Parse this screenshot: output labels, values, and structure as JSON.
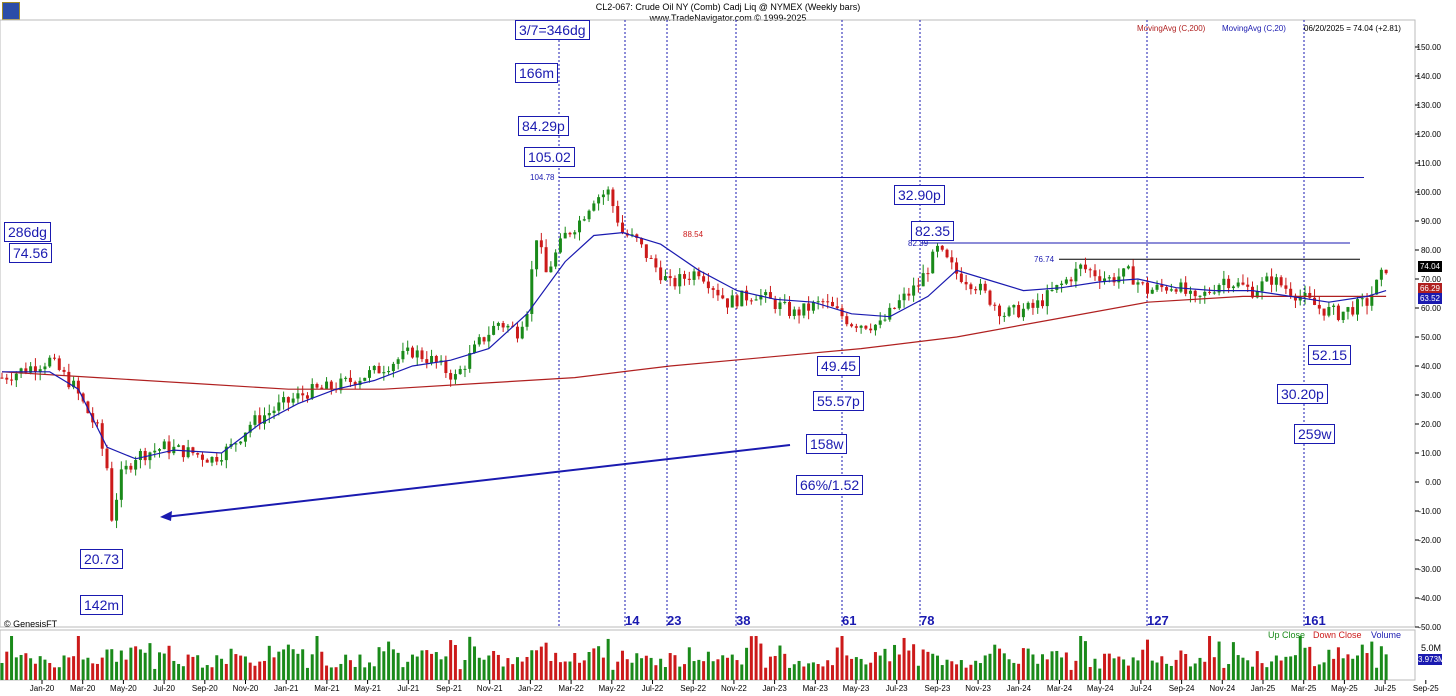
{
  "header": {
    "title": "CL2-067:  Crude Oil NY (Comb) Cadj Liq @ NYMEX  (Weekly bars)",
    "source": "www.TradeNavigator.com © 1999-2025",
    "ma200_label": "MovingAvg (C,200)",
    "ma20_label": "MovingAvg (C,20)",
    "last_bar": "06/20/2025 = 74.04 (+2.81)",
    "copyright": "© GenesisFT"
  },
  "colors": {
    "ma200": "#b02020",
    "ma20": "#1a1ab0",
    "up": "#1a8a1a",
    "down": "#cc1a1a",
    "annot": "#1a1ab0"
  },
  "price_tags": {
    "last": "74.04",
    "ma20": "66.29",
    "ma200": "63.52"
  },
  "volume": {
    "up_label": "Up Close",
    "down_label": "Down Close",
    "vol_label": "Volume",
    "top_tick": "5.0M",
    "last": "3.973M"
  },
  "annotations": {
    "angle_top": "3/7=346dg",
    "m166": "166m",
    "p8429": "84.29p",
    "v10502": "105.02",
    "dg286": "286dg",
    "v7456": "74.56",
    "p3290": "32.90p",
    "v8235": "82.35",
    "v4945": "49.45",
    "p5557": "55.57p",
    "w158": "158w",
    "pct": "66%/1.52",
    "v2073": "20.73",
    "m142": "142m",
    "v5215": "52.15",
    "p3020": "30.20p",
    "w259": "259w",
    "small_10478": "104.78",
    "small_8254": "88.54",
    "small_8239": "82.39",
    "small_7674": "76.74"
  },
  "bar_counts": [
    "14",
    "23",
    "38",
    "61",
    "78",
    "127",
    "161"
  ],
  "chart_data": {
    "type": "candlestick",
    "title": "CL2-067: Crude Oil NY (Comb) Cadj Liq @ NYMEX (Weekly bars)",
    "yticks": [
      150,
      140,
      130,
      120,
      110,
      100,
      90,
      80,
      70,
      60,
      50,
      40,
      30,
      20,
      10,
      0,
      -10,
      -20,
      -30,
      -40,
      -50
    ],
    "ylim": [
      -50,
      155
    ],
    "xlabels": [
      "Jan-20",
      "Mar-20",
      "May-20",
      "Jul-20",
      "Sep-20",
      "Nov-20",
      "Jan-21",
      "Mar-21",
      "May-21",
      "Jul-21",
      "Sep-21",
      "Nov-21",
      "Jan-22",
      "Mar-22",
      "May-22",
      "Jul-22",
      "Sep-22",
      "Nov-22",
      "Jan-23",
      "Mar-23",
      "May-23",
      "Jul-23",
      "Sep-23",
      "Nov-23",
      "Jan-24",
      "Mar-24",
      "May-24",
      "Jul-24",
      "Sep-24",
      "Nov-24",
      "Jan-25",
      "Mar-25",
      "May-25",
      "Jul-25",
      "Sep-25"
    ],
    "price_path": [
      [
        0,
        36
      ],
      [
        10,
        42
      ],
      [
        15,
        33
      ],
      [
        20,
        18
      ],
      [
        22,
        5
      ],
      [
        23,
        -12
      ],
      [
        25,
        2
      ],
      [
        28,
        9
      ],
      [
        34,
        12
      ],
      [
        40,
        10
      ],
      [
        44,
        8
      ],
      [
        48,
        12
      ],
      [
        52,
        20
      ],
      [
        58,
        26
      ],
      [
        64,
        31
      ],
      [
        70,
        33
      ],
      [
        78,
        38
      ],
      [
        86,
        45
      ],
      [
        90,
        42
      ],
      [
        95,
        36
      ],
      [
        100,
        48
      ],
      [
        104,
        55
      ],
      [
        108,
        52
      ],
      [
        110,
        60
      ],
      [
        112,
        85
      ],
      [
        114,
        72
      ],
      [
        118,
        85
      ],
      [
        121,
        90
      ],
      [
        124,
        98
      ],
      [
        127,
        100
      ],
      [
        130,
        86
      ],
      [
        133,
        83
      ],
      [
        136,
        76
      ],
      [
        140,
        68
      ],
      [
        146,
        73
      ],
      [
        152,
        62
      ],
      [
        158,
        65
      ],
      [
        166,
        58
      ],
      [
        172,
        62
      ],
      [
        178,
        55
      ],
      [
        184,
        54
      ],
      [
        188,
        62
      ],
      [
        192,
        68
      ],
      [
        196,
        80
      ],
      [
        200,
        72
      ],
      [
        204,
        68
      ],
      [
        210,
        58
      ],
      [
        216,
        60
      ],
      [
        222,
        68
      ],
      [
        226,
        74
      ],
      [
        232,
        70
      ],
      [
        236,
        72
      ],
      [
        240,
        66
      ],
      [
        246,
        68
      ],
      [
        250,
        62
      ],
      [
        256,
        70
      ],
      [
        262,
        66
      ],
      [
        266,
        70
      ],
      [
        270,
        66
      ],
      [
        276,
        60
      ],
      [
        280,
        58
      ],
      [
        286,
        62
      ],
      [
        290,
        74
      ]
    ],
    "ma20_path": [
      [
        0,
        38
      ],
      [
        10,
        38
      ],
      [
        16,
        32
      ],
      [
        22,
        12
      ],
      [
        28,
        8
      ],
      [
        36,
        11
      ],
      [
        46,
        10
      ],
      [
        54,
        20
      ],
      [
        62,
        27
      ],
      [
        70,
        32
      ],
      [
        78,
        35
      ],
      [
        86,
        40
      ],
      [
        94,
        42
      ],
      [
        102,
        46
      ],
      [
        110,
        58
      ],
      [
        118,
        76
      ],
      [
        124,
        85
      ],
      [
        130,
        86
      ],
      [
        138,
        82
      ],
      [
        146,
        73
      ],
      [
        154,
        66
      ],
      [
        162,
        63
      ],
      [
        170,
        62
      ],
      [
        178,
        58
      ],
      [
        186,
        57
      ],
      [
        194,
        64
      ],
      [
        200,
        73
      ],
      [
        206,
        70
      ],
      [
        214,
        66
      ],
      [
        222,
        67
      ],
      [
        230,
        69
      ],
      [
        238,
        70
      ],
      [
        246,
        67
      ],
      [
        254,
        66
      ],
      [
        262,
        66
      ],
      [
        270,
        64
      ],
      [
        278,
        62
      ],
      [
        286,
        64
      ],
      [
        290,
        66
      ]
    ],
    "ma200_path": [
      [
        0,
        38
      ],
      [
        20,
        36
      ],
      [
        40,
        34
      ],
      [
        60,
        32
      ],
      [
        80,
        32
      ],
      [
        100,
        34
      ],
      [
        120,
        36
      ],
      [
        140,
        40
      ],
      [
        160,
        43
      ],
      [
        180,
        46
      ],
      [
        200,
        50
      ],
      [
        220,
        56
      ],
      [
        240,
        62
      ],
      [
        260,
        64
      ],
      [
        280,
        64
      ],
      [
        290,
        64
      ]
    ],
    "volume_values": [
      20,
      35,
      55,
      40,
      30,
      28,
      26,
      30,
      32,
      28,
      25,
      27,
      30,
      28,
      26,
      35,
      60,
      45,
      40,
      33,
      30,
      28,
      35,
      42,
      38,
      32,
      30,
      36,
      40,
      55,
      48,
      45
    ]
  }
}
